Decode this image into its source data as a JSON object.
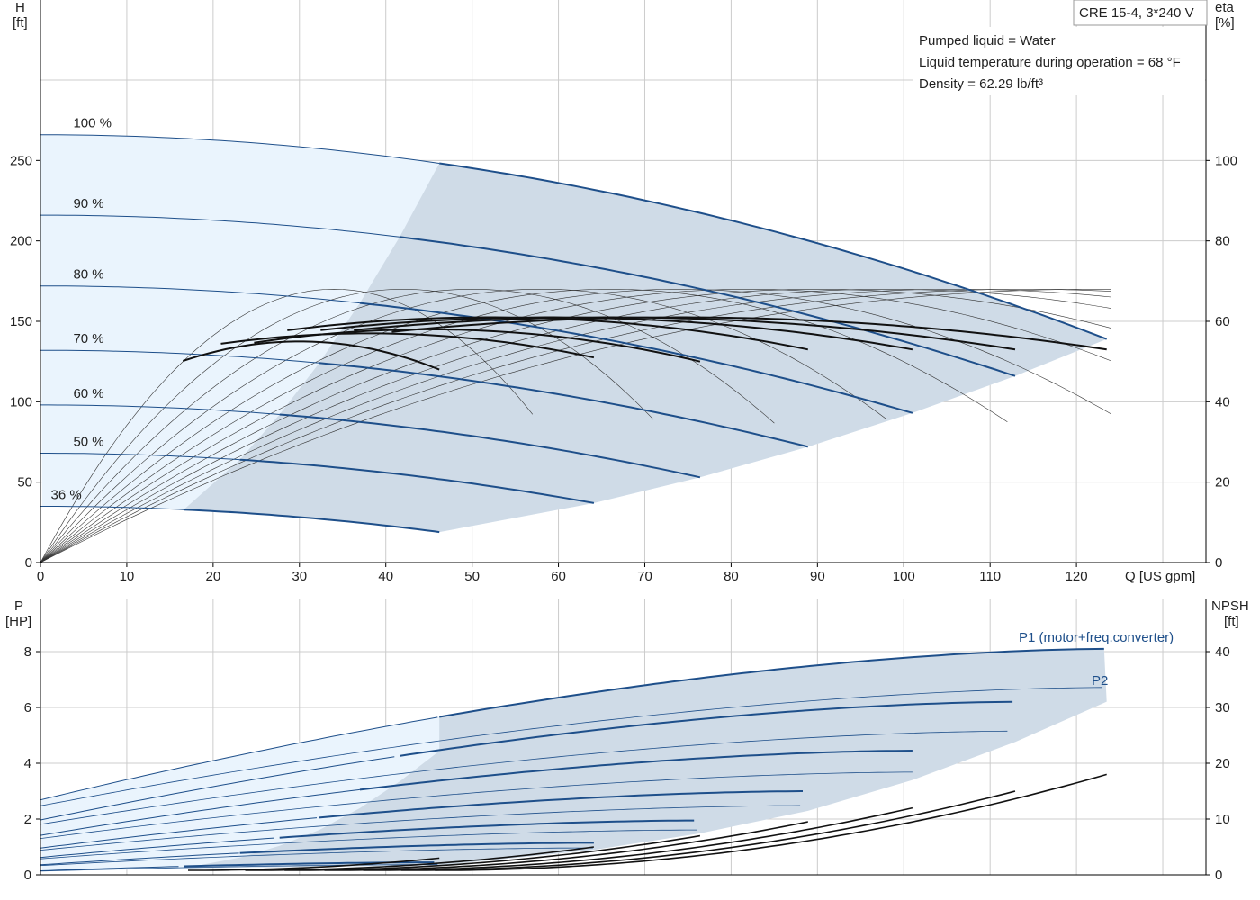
{
  "model_label": "CRE 15-4, 3*240 V",
  "info_lines": [
    "Pumped liquid = Water",
    "Liquid temperature during operation = 68 °F",
    "Density = 62.29 lb/ft³"
  ],
  "colors": {
    "band_light": "#eaf4fd",
    "band_dark": "#cfdbe7",
    "curve_blue": "#1e4f8a",
    "curve_black": "#111111",
    "grid": "#cccccc"
  },
  "chart_data": [
    {
      "type": "line",
      "name": "head_efficiency",
      "x_label": "Q [US gpm]",
      "y_left_label": [
        "H",
        "[ft]"
      ],
      "y_right_label": [
        "eta",
        "[%]"
      ],
      "xlim": [
        0,
        135
      ],
      "ylim_left": [
        0,
        300
      ],
      "ylim_right": [
        0,
        120
      ],
      "x_ticks": [
        0,
        10,
        20,
        30,
        40,
        50,
        60,
        70,
        80,
        90,
        100,
        110,
        120
      ],
      "y_left_ticks": [
        0,
        50,
        100,
        150,
        200,
        250
      ],
      "y_right_ticks": [
        0,
        20,
        40,
        60,
        80,
        100
      ],
      "grid": true,
      "speed_labels": [
        "100 %",
        "90 %",
        "80 %",
        "70 %",
        "60 %",
        "50 %",
        "36 %"
      ],
      "head_curves": [
        {
          "speed": "100 %",
          "shut": 266,
          "q_start": 46.2,
          "q_end": 123.5,
          "h_end": 139
        },
        {
          "speed": "90 %",
          "shut": 216,
          "q_start": 41.6,
          "q_end": 112.9,
          "h_end": 116
        },
        {
          "speed": "80 %",
          "shut": 172,
          "q_start": 37.0,
          "q_end": 101.0,
          "h_end": 93
        },
        {
          "speed": "70 %",
          "shut": 132,
          "q_start": 32.3,
          "q_end": 88.9,
          "h_end": 72
        },
        {
          "speed": "60 %",
          "shut": 98,
          "q_start": 27.7,
          "q_end": 76.4,
          "h_end": 53
        },
        {
          "speed": "50 %",
          "shut": 68,
          "q_start": 23.1,
          "q_end": 64.1,
          "h_end": 37
        },
        {
          "speed": "36 %",
          "shut": 35,
          "q_start": 16.6,
          "q_end": 46.2,
          "h_end": 19
        }
      ],
      "efficiency_curves": [
        {
          "q_peak": 74,
          "q_end": 123.5,
          "eta_peak": 61,
          "eta_end": 53
        },
        {
          "q_peak": 66,
          "q_end": 112.9,
          "eta_peak": 61,
          "eta_end": 53
        },
        {
          "q_peak": 59,
          "q_end": 101.0,
          "eta_peak": 61,
          "eta_end": 53
        },
        {
          "q_peak": 52,
          "q_end": 88.9,
          "eta_peak": 61,
          "eta_end": 53
        },
        {
          "q_peak": 45,
          "q_end": 76.4,
          "eta_peak": 58,
          "eta_end": 50
        },
        {
          "q_peak": 38,
          "q_end": 64.1,
          "eta_peak": 57,
          "eta_end": 51
        },
        {
          "q_peak": 30,
          "q_end": 46.2,
          "eta_peak": 55,
          "eta_end": 48
        }
      ]
    },
    {
      "type": "line",
      "name": "power_npsh",
      "y_left_label": [
        "P",
        "[HP]"
      ],
      "y_right_label": [
        "NPSH",
        "[ft]"
      ],
      "xlim": [
        0,
        135
      ],
      "ylim_left": [
        0,
        10
      ],
      "ylim_right": [
        0,
        50
      ],
      "y_left_ticks": [
        0,
        2,
        4,
        6,
        8
      ],
      "y_right_ticks": [
        0,
        10,
        20,
        30,
        40
      ],
      "grid": true,
      "series_labels": [
        "P1 (motor+freq.converter)",
        "P2"
      ],
      "power_curves": [
        {
          "q_start": 46.2,
          "q_end": 123.5,
          "p1_start": 5.6,
          "p1_end": 8.1,
          "p2_end": 7.3
        },
        {
          "q_start": 41.6,
          "q_end": 112.9,
          "p1_start": 4.1,
          "p1_end": 6.2,
          "p2_end": 5.6
        },
        {
          "q_start": 37.0,
          "q_end": 101.0,
          "p1_start": 2.95,
          "p1_end": 4.45,
          "p2_end": 4.0
        },
        {
          "q_start": 32.3,
          "q_end": 88.9,
          "p1_start": 2.0,
          "p1_end": 3.0,
          "p2_end": 2.7
        },
        {
          "q_start": 27.7,
          "q_end": 76.4,
          "p1_start": 1.3,
          "p1_end": 1.95,
          "p2_end": 1.75
        },
        {
          "q_start": 23.1,
          "q_end": 64.1,
          "p1_start": 0.75,
          "p1_end": 1.15,
          "p2_end": 1.05
        },
        {
          "q_start": 16.6,
          "q_end": 46.2,
          "p1_start": 0.3,
          "p1_end": 0.45,
          "p2_end": 0.4
        }
      ],
      "npsh_curves": [
        {
          "q_end": 123.5,
          "npsh_end": 18
        },
        {
          "q_end": 112.9,
          "npsh_end": 15
        },
        {
          "q_end": 101.0,
          "npsh_end": 12
        },
        {
          "q_end": 88.9,
          "npsh_end": 9.5
        },
        {
          "q_end": 76.4,
          "npsh_end": 7
        },
        {
          "q_end": 64.1,
          "npsh_end": 5
        },
        {
          "q_end": 46.2,
          "npsh_end": 3
        }
      ]
    }
  ]
}
